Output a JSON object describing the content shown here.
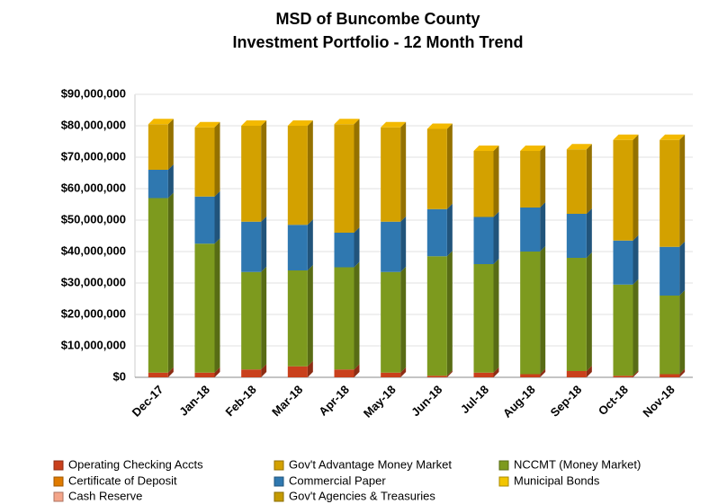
{
  "chart_data": {
    "type": "stacked_bar_3d",
    "title": [
      "MSD of Buncombe County",
      "Investment Portfolio - 12 Month Trend"
    ],
    "categories": [
      "Dec-17",
      "Jan-18",
      "Feb-18",
      "Mar-18",
      "Apr-18",
      "May-18",
      "Jun-18",
      "Jul-18",
      "Aug-18",
      "Sep-18",
      "Oct-18",
      "Nov-18"
    ],
    "series": [
      {
        "name": "Operating Checking Accts",
        "color": "#c9401c",
        "values": [
          1500000,
          1500000,
          2500000,
          3500000,
          2500000,
          1500000,
          500000,
          1500000,
          1000000,
          2000000,
          500000,
          1000000
        ]
      },
      {
        "name": "Certificate of Deposit",
        "color": "#e07b00",
        "values": [
          0,
          0,
          0,
          0,
          0,
          0,
          0,
          0,
          0,
          0,
          0,
          0
        ]
      },
      {
        "name": "NCCMT (Money Market)",
        "color": "#7d9a1e",
        "values": [
          55500000,
          41000000,
          31000000,
          30500000,
          32500000,
          32000000,
          38000000,
          34500000,
          39000000,
          36000000,
          29000000,
          25000000
        ]
      },
      {
        "name": "Commercial Paper",
        "color": "#2f78b0",
        "values": [
          9000000,
          15000000,
          16000000,
          14500000,
          11000000,
          16000000,
          15000000,
          15000000,
          14000000,
          14000000,
          14000000,
          15500000
        ]
      },
      {
        "name": "Gov't Advantage Money Market",
        "color": "#d3a100",
        "values": [
          14500000,
          22000000,
          30500000,
          31500000,
          34500000,
          30000000,
          25500000,
          21000000,
          18000000,
          20500000,
          32000000,
          34000000
        ]
      },
      {
        "name": "Municipal Bonds",
        "color": "#f2c500",
        "values": [
          0,
          0,
          0,
          0,
          0,
          0,
          0,
          0,
          0,
          0,
          0,
          0
        ]
      },
      {
        "name": "Cash Reserve",
        "color": "#f4a58a",
        "values": [
          0,
          0,
          0,
          0,
          0,
          0,
          0,
          0,
          0,
          0,
          0,
          0
        ]
      },
      {
        "name": "Gov't Agencies & Treasuries",
        "color": "#c49a00",
        "values": [
          0,
          0,
          0,
          0,
          0,
          0,
          0,
          0,
          0,
          0,
          0,
          0
        ]
      }
    ],
    "ylim": [
      0,
      90000000
    ],
    "yticks": [
      {
        "value": 0,
        "label": "$0"
      },
      {
        "value": 10000000,
        "label": "$10,000,000"
      },
      {
        "value": 20000000,
        "label": "$20,000,000"
      },
      {
        "value": 30000000,
        "label": "$30,000,000"
      },
      {
        "value": 40000000,
        "label": "$40,000,000"
      },
      {
        "value": 50000000,
        "label": "$50,000,000"
      },
      {
        "value": 60000000,
        "label": "$60,000,000"
      },
      {
        "value": 70000000,
        "label": "$70,000,000"
      },
      {
        "value": 80000000,
        "label": "$80,000,000"
      },
      {
        "value": 90000000,
        "label": "$90,000,000"
      }
    ],
    "grid": true
  }
}
